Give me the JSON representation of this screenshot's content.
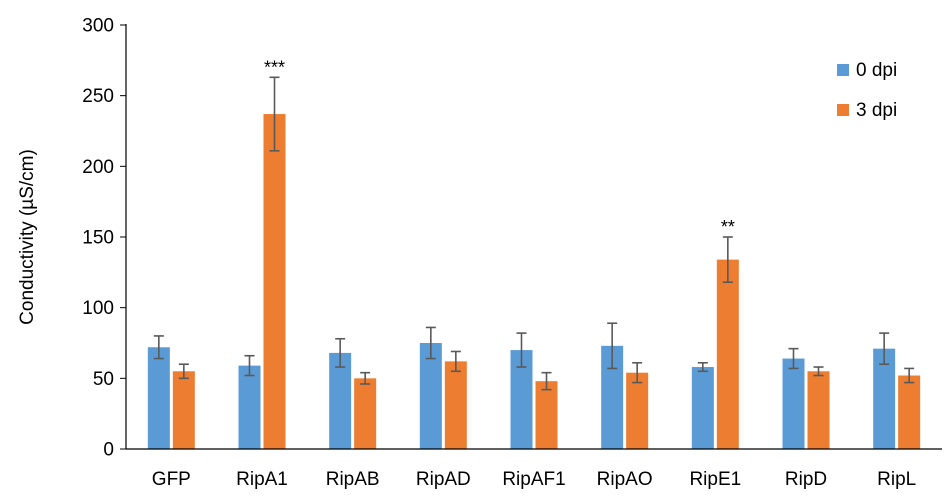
{
  "chart_data": {
    "type": "bar",
    "title": "",
    "xlabel": "",
    "ylabel": "Conductivity (µS/cm)",
    "ylim": [
      0,
      300
    ],
    "yticks": [
      0,
      50,
      100,
      150,
      200,
      250,
      300
    ],
    "grid": false,
    "legend_position": "top-right",
    "categories": [
      "GFP",
      "RipA1",
      "RipAB",
      "RipAD",
      "RipAF1",
      "RipAO",
      "RipE1",
      "RipD",
      "RipL"
    ],
    "series": [
      {
        "name": "0 dpi",
        "color": "#5B9BD5",
        "values": [
          72,
          59,
          68,
          75,
          70,
          73,
          58,
          64,
          71
        ],
        "errors": [
          8,
          7,
          10,
          11,
          12,
          16,
          3,
          7,
          11
        ]
      },
      {
        "name": "3 dpi",
        "color": "#ED7D31",
        "values": [
          55,
          0,
          50,
          62,
          48,
          54,
          134,
          55,
          52
        ],
        "errors": [
          5,
          0,
          4,
          7,
          6,
          7,
          16,
          3,
          5
        ]
      }
    ],
    "overrides": [
      {
        "series": 1,
        "index": 1,
        "value": 237,
        "error": 26
      }
    ],
    "annotations": [
      {
        "category": "RipA1",
        "series": "3 dpi",
        "text": "***"
      },
      {
        "category": "RipE1",
        "series": "3 dpi",
        "text": "**"
      }
    ]
  }
}
